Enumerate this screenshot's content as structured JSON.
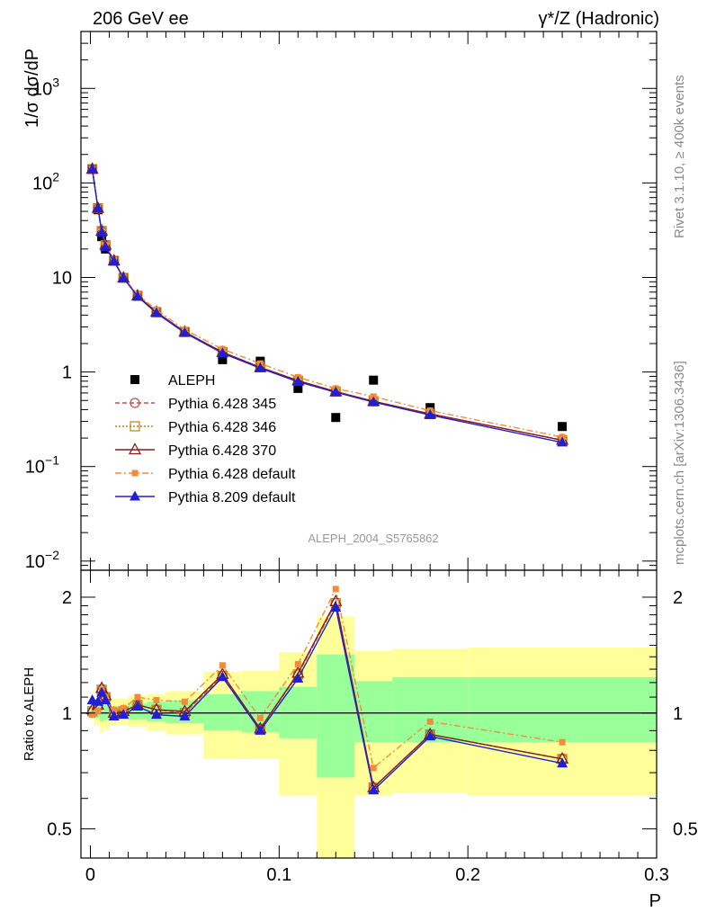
{
  "header": {
    "left": "206 GeV ee",
    "right": "γ*/Z (Hadronic)"
  },
  "side_labels": {
    "rivet": "Rivet 3.1.10, ≥ 400k events",
    "mcplots": "mcplots.cern.ch [arXiv:1306.3436]"
  },
  "colors": {
    "data": "#000000",
    "p345": "#c0504d",
    "p346": "#b8860b",
    "p370": "#8b1a1a",
    "p6def": "#f28c3c",
    "p8def": "#1f1fd6",
    "band_inner": "#99ff99",
    "band_outer": "#ffff99"
  },
  "chart_data": [
    {
      "type": "scatter",
      "title": "",
      "xlabel": "P",
      "ylabel": "1/σ  dσ/dP",
      "yscale": "log",
      "xlim": [
        -0.005,
        0.3
      ],
      "ylim": [
        0.008,
        4000
      ],
      "watermark": "ALEPH_2004_S5765862",
      "legend_position": "center-left",
      "x": [
        0.001,
        0.004,
        0.006,
        0.008,
        0.0125,
        0.0175,
        0.025,
        0.035,
        0.05,
        0.07,
        0.09,
        0.11,
        0.13,
        0.15,
        0.18,
        0.25
      ],
      "series": [
        {
          "name": "ALEPH",
          "marker": "square-filled",
          "values": [
            140,
            52,
            27,
            20,
            15,
            10,
            6.3,
            4.3,
            2.65,
            1.35,
            1.3,
            0.67,
            0.33,
            0.82,
            0.42,
            0.265
          ]
        },
        {
          "name": "Pythia 6.428 345",
          "marker": "circle-open",
          "values": [
            140,
            54,
            31,
            22,
            15,
            9.9,
            6.4,
            4.3,
            2.65,
            1.62,
            1.12,
            0.81,
            0.62,
            0.49,
            0.36,
            0.19
          ]
        },
        {
          "name": "Pythia 6.428 346",
          "marker": "square-open",
          "values": [
            140,
            54,
            31,
            22,
            15,
            9.9,
            6.4,
            4.3,
            2.65,
            1.62,
            1.12,
            0.81,
            0.62,
            0.49,
            0.36,
            0.19
          ]
        },
        {
          "name": "Pythia 6.428 370",
          "marker": "triangle-open",
          "values": [
            140,
            54,
            31,
            22,
            15,
            9.9,
            6.4,
            4.3,
            2.65,
            1.62,
            1.12,
            0.81,
            0.62,
            0.49,
            0.36,
            0.19
          ]
        },
        {
          "name": "Pythia 6.428 default",
          "marker": "square-small-filled",
          "values": [
            140,
            54,
            31,
            22,
            15.2,
            10.1,
            6.6,
            4.55,
            2.8,
            1.75,
            1.23,
            0.88,
            0.67,
            0.55,
            0.39,
            0.205
          ]
        },
        {
          "name": "Pythia 8.209 default",
          "marker": "triangle-filled",
          "values": [
            140,
            54,
            30,
            21,
            14.8,
            9.9,
            6.3,
            4.2,
            2.6,
            1.58,
            1.1,
            0.79,
            0.61,
            0.48,
            0.35,
            0.18
          ]
        }
      ]
    },
    {
      "type": "line",
      "xlabel": "P",
      "ylabel": "Ratio to ALEPH",
      "yscale": "log",
      "xlim": [
        -0.005,
        0.3
      ],
      "ylim": [
        0.42,
        2.35
      ],
      "reference_line": 1,
      "band_edges": [
        0,
        0.002,
        0.005,
        0.007,
        0.01,
        0.015,
        0.02,
        0.03,
        0.04,
        0.06,
        0.08,
        0.1,
        0.12,
        0.14,
        0.16,
        0.2,
        0.3
      ],
      "band_inner": {
        "lo": [
          0.98,
          0.97,
          0.95,
          0.96,
          0.97,
          0.97,
          0.96,
          0.95,
          0.94,
          0.9,
          0.89,
          0.86,
          0.68,
          0.84,
          0.84,
          0.84
        ],
        "hi": [
          1.03,
          1.04,
          1.06,
          1.05,
          1.04,
          1.04,
          1.06,
          1.07,
          1.08,
          1.12,
          1.14,
          1.17,
          1.42,
          1.21,
          1.24,
          1.24
        ]
      },
      "band_outer": {
        "lo": [
          0.96,
          0.93,
          0.89,
          0.91,
          0.93,
          0.93,
          0.92,
          0.9,
          0.88,
          0.76,
          0.76,
          0.61,
          0.35,
          0.61,
          0.62,
          0.61
        ],
        "hi": [
          1.05,
          1.08,
          1.12,
          1.1,
          1.09,
          1.09,
          1.11,
          1.12,
          1.14,
          1.28,
          1.29,
          1.44,
          1.78,
          1.45,
          1.47,
          1.48
        ]
      },
      "x": [
        0.001,
        0.004,
        0.006,
        0.008,
        0.0125,
        0.0175,
        0.025,
        0.035,
        0.05,
        0.07,
        0.09,
        0.11,
        0.13,
        0.15,
        0.18,
        0.25
      ],
      "series": [
        {
          "name": "Pythia 6.428 345",
          "values": [
            1.01,
            1.05,
            1.15,
            1.1,
            1.0,
            1.01,
            1.05,
            1.02,
            1.0,
            1.25,
            0.91,
            1.26,
            1.93,
            0.64,
            0.88,
            0.76
          ]
        },
        {
          "name": "Pythia 6.428 346",
          "values": [
            1.01,
            1.05,
            1.15,
            1.1,
            1.0,
            1.01,
            1.05,
            1.02,
            1.0,
            1.25,
            0.91,
            1.26,
            1.93,
            0.64,
            0.88,
            0.76
          ]
        },
        {
          "name": "Pythia 6.428 370",
          "values": [
            1.02,
            1.05,
            1.16,
            1.11,
            1.0,
            1.01,
            1.05,
            1.02,
            1.01,
            1.26,
            0.91,
            1.27,
            1.95,
            0.64,
            0.88,
            0.76
          ]
        },
        {
          "name": "Pythia 6.428 default",
          "values": [
            0.99,
            1.01,
            1.15,
            1.1,
            1.02,
            1.03,
            1.1,
            1.08,
            1.07,
            1.33,
            0.97,
            1.34,
            2.1,
            0.72,
            0.95,
            0.84
          ]
        },
        {
          "name": "Pythia 8.209 default",
          "values": [
            1.08,
            1.07,
            1.13,
            1.08,
            0.98,
            0.99,
            1.04,
            0.99,
            0.98,
            1.24,
            0.9,
            1.23,
            1.88,
            0.63,
            0.87,
            0.74
          ]
        }
      ]
    }
  ]
}
